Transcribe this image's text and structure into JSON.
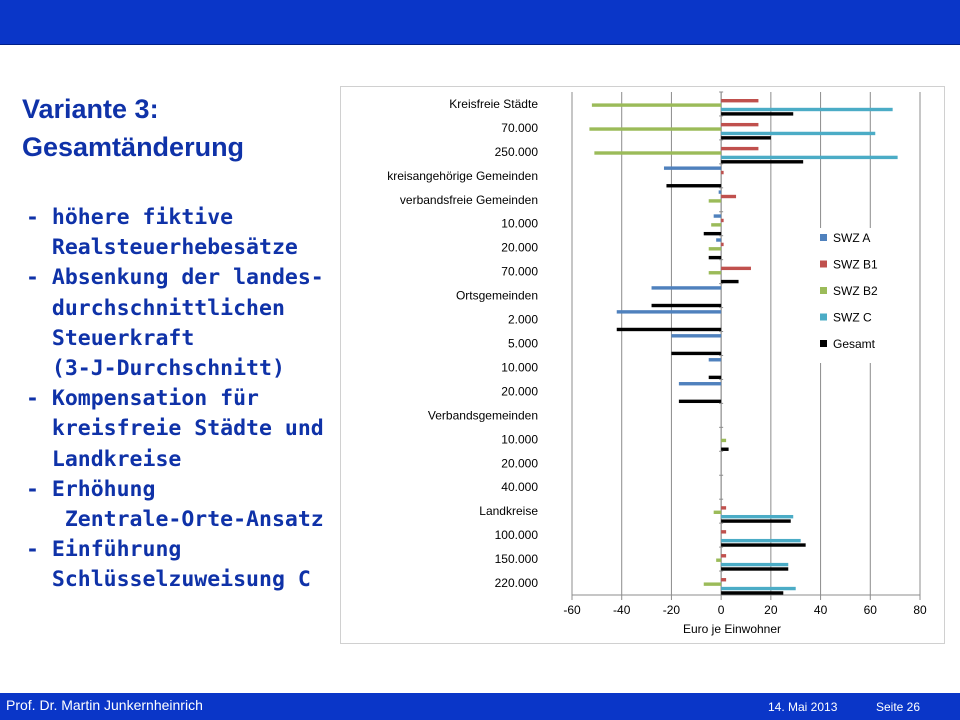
{
  "slide": {
    "title_line1": "Variante 3:",
    "title_line2": "Gesamtänderung",
    "bullets": [
      "- höhere fiktive",
      "  Realsteuerhebesätze",
      "- Absenkung der landes-",
      "  durchschnittlichen",
      "  Steuerkraft",
      "  (3-J-Durchschnitt)",
      "- Kompensation für",
      "  kreisfreie Städte und",
      "  Landkreise",
      "- Erhöhung",
      "   Zentrale-Orte-Ansatz",
      "- Einführung",
      "  Schlüsselzuweisung C"
    ]
  },
  "footer": {
    "author": "Prof. Dr. Martin Junkernheinrich",
    "date": "14. Mai 2013",
    "page": "Seite 26"
  },
  "chart_data": {
    "type": "bar",
    "orientation": "horizontal",
    "categories": [
      "Kreisfreie Städte",
      "70.000",
      "250.000",
      "kreisangehörige Gemeinden",
      "verbandsfreie Gemeinden",
      "10.000",
      "20.000",
      "70.000",
      "Ortsgemeinden",
      "2.000",
      "5.000",
      "10.000",
      "20.000",
      "Verbandsgemeinden",
      "10.000",
      "20.000",
      "40.000",
      "Landkreise",
      "100.000",
      "150.000",
      "220.000"
    ],
    "series": [
      {
        "name": "SWZ A",
        "color": "#4f81bd",
        "values": [
          0,
          0,
          0,
          -23,
          -1,
          -3,
          -2,
          0,
          -28,
          -42,
          -20,
          -5,
          -17,
          0,
          0,
          0,
          0,
          0,
          0,
          0,
          0
        ]
      },
      {
        "name": "SWZ B1",
        "color": "#c0504d",
        "values": [
          15,
          15,
          15,
          1,
          6,
          1,
          1,
          12,
          0,
          0,
          0,
          0,
          0,
          0,
          0,
          0,
          0,
          2,
          2,
          2,
          2
        ]
      },
      {
        "name": "SWZ B2",
        "color": "#9bbb59",
        "values": [
          -52,
          -53,
          -51,
          0,
          -5,
          -4,
          -5,
          -5,
          0,
          0,
          0,
          0,
          0,
          0,
          2,
          0,
          0,
          -3,
          0,
          -2,
          -7
        ]
      },
      {
        "name": "SWZ C",
        "color": "#4bacc6",
        "values": [
          69,
          62,
          71,
          0,
          0,
          0,
          0,
          0,
          0,
          0,
          0,
          0,
          0,
          0,
          0,
          0,
          0,
          29,
          32,
          27,
          30
        ]
      },
      {
        "name": "Gesamt",
        "color": "#000000",
        "values": [
          29,
          20,
          33,
          -22,
          0,
          -7,
          -5,
          7,
          -28,
          -42,
          -20,
          -5,
          -17,
          0,
          3,
          0,
          0,
          28,
          34,
          27,
          25
        ]
      }
    ],
    "xlabel": "Euro je Einwohner",
    "ylabel": "",
    "xlim": [
      -60,
      80
    ],
    "xticks": [
      -60,
      -40,
      -20,
      0,
      20,
      40,
      60,
      80
    ],
    "grid": "vertical",
    "legend_position": "right"
  }
}
